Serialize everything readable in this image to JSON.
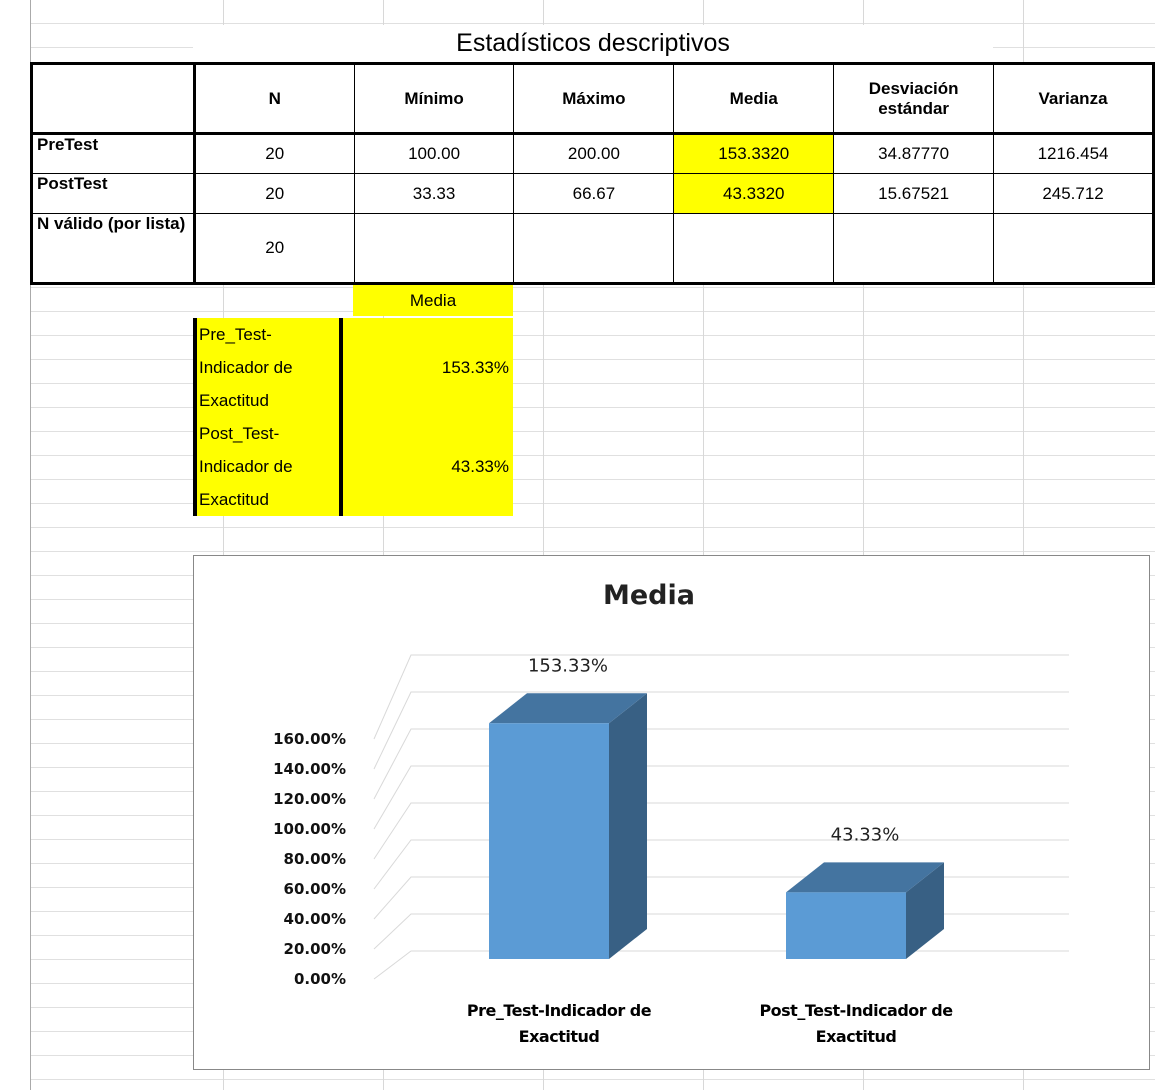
{
  "table": {
    "title": "Estadísticos descriptivos",
    "headers": [
      "",
      "N",
      "Mínimo",
      "Máximo",
      "Media",
      "Desviación estándar",
      "Varianza"
    ],
    "rows": [
      [
        "PreTest",
        "20",
        "100.00",
        "200.00",
        "153.3320",
        "34.87770",
        "1216.454"
      ],
      [
        "PostTest",
        "20",
        "33.33",
        "66.67",
        "43.3320",
        "15.67521",
        "245.712"
      ],
      [
        "N válido (por lista)",
        "20",
        "",
        "",
        "",
        "",
        ""
      ]
    ]
  },
  "media_table": {
    "header": "Media",
    "rows": [
      {
        "label": "Pre_Test-Indicador de Exactitud",
        "value": "153.33%"
      },
      {
        "label": "Post_Test-Indicador de Exactitud",
        "value": "43.33%"
      }
    ]
  },
  "chart_data": {
    "type": "bar",
    "title": "Media",
    "categories": [
      "Pre_Test-Indicador de Exactitud",
      "Post_Test-Indicador de Exactitud"
    ],
    "values": [
      153.33,
      43.33
    ],
    "value_labels": [
      "153.33%",
      "43.33%"
    ],
    "color": "#5b9bd5",
    "ylim": [
      0,
      160
    ],
    "yticks": [
      {
        "value": 0,
        "label": "0.00%"
      },
      {
        "value": 20,
        "label": "20.00%"
      },
      {
        "value": 40,
        "label": "40.00%"
      },
      {
        "value": 60,
        "label": "60.00%"
      },
      {
        "value": 80,
        "label": "80.00%"
      },
      {
        "value": 100,
        "label": "100.00%"
      },
      {
        "value": 120,
        "label": "120.00%"
      },
      {
        "value": 140,
        "label": "140.00%"
      },
      {
        "value": 160,
        "label": "160.00%"
      }
    ],
    "grid": true
  }
}
